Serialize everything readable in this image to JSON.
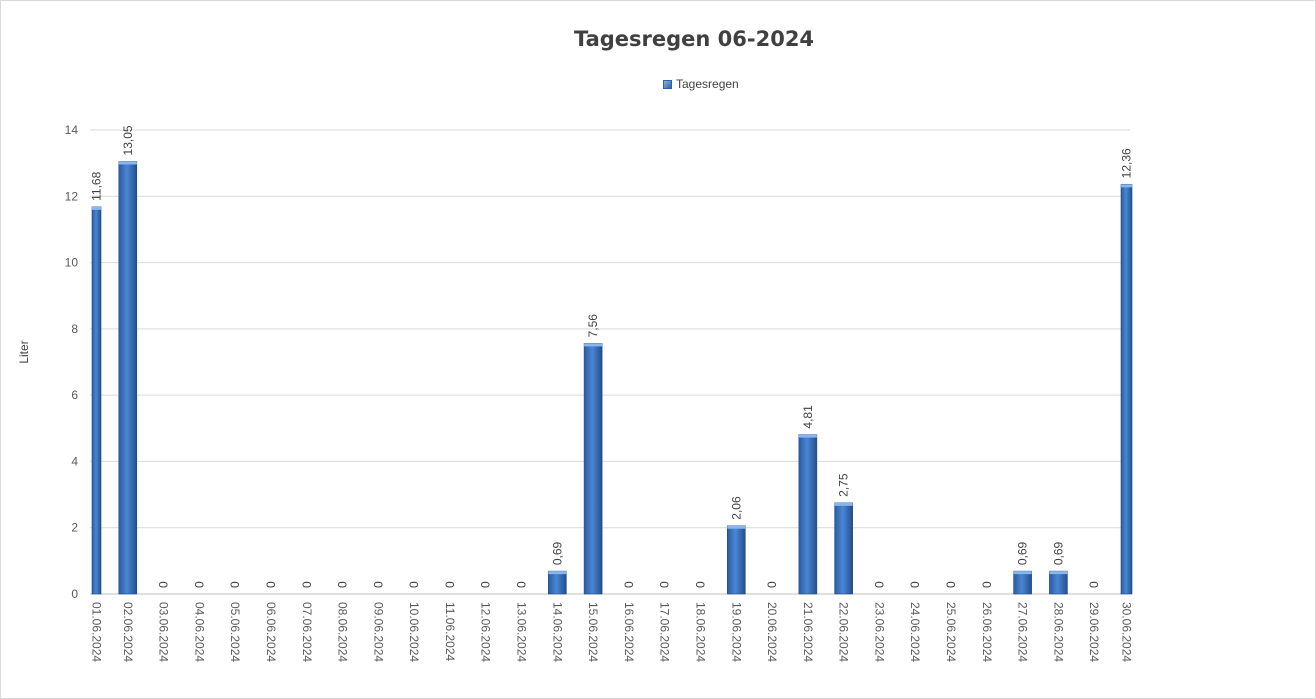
{
  "chart_data": {
    "type": "bar",
    "title": "Tagesregen 06-2024",
    "ylabel": "Liter",
    "xlabel": "",
    "ylim": [
      0,
      14
    ],
    "yticks": [
      0,
      2,
      4,
      6,
      8,
      10,
      12,
      14
    ],
    "grid": true,
    "legend_placement": "top",
    "bar_color": "#2e62a8",
    "bar_highlight": "#6a9ee0",
    "categories": [
      "01.06.2024",
      "02.06.2024",
      "03.06.2024",
      "04.06.2024",
      "05.06.2024",
      "06.06.2024",
      "07.06.2024",
      "08.06.2024",
      "09.06.2024",
      "10.06.2024",
      "11.06.2024",
      "12.06.2024",
      "13.06.2024",
      "14.06.2024",
      "15.06.2024",
      "16.06.2024",
      "17.06.2024",
      "18.06.2024",
      "19.06.2024",
      "20.06.2024",
      "21.06.2024",
      "22.06.2024",
      "23.06.2024",
      "24.06.2024",
      "25.06.2024",
      "26.06.2024",
      "27.06.2024",
      "28.06.2024",
      "29.06.2024",
      "30.06.2024"
    ],
    "series": [
      {
        "name": "Tagesregen",
        "values": [
          11.68,
          13.05,
          0,
          0,
          0,
          0,
          0,
          0,
          0,
          0,
          0,
          0,
          0,
          0.69,
          7.56,
          0,
          0,
          0,
          2.06,
          0,
          4.81,
          2.75,
          0,
          0,
          0,
          0,
          0.69,
          0.69,
          0,
          12.36
        ],
        "labels": [
          "11,68",
          "13,05",
          "0",
          "0",
          "0",
          "0",
          "0",
          "0",
          "0",
          "0",
          "0",
          "0",
          "0",
          "0,69",
          "7,56",
          "0",
          "0",
          "0",
          "2,06",
          "0",
          "4,81",
          "2,75",
          "0",
          "0",
          "0",
          "0",
          "0,69",
          "0,69",
          "0",
          "12,36"
        ]
      }
    ]
  }
}
